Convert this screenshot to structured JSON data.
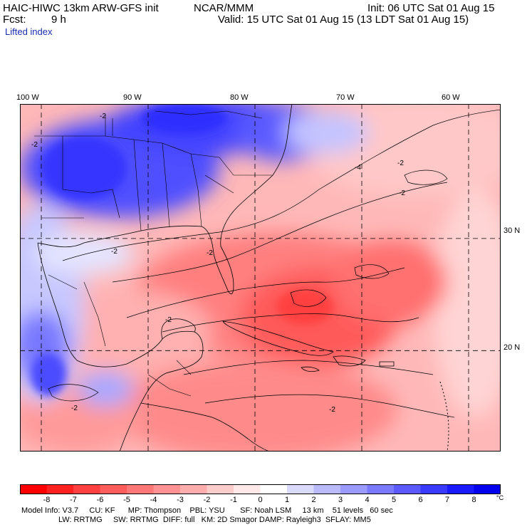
{
  "header": {
    "model": "HAIC-HIWC 13km ARW-GFS init",
    "org": "NCAR/MMM",
    "init": "Init: 06 UTC Sat 01 Aug 15",
    "fcst_label": "Fcst:",
    "fcst_value": "9 h",
    "valid": "Valid: 15 UTC Sat 01 Aug 15 (13 LDT Sat 01 Aug 15)",
    "field": "Lifted index"
  },
  "map": {
    "lon_labels": [
      "100 W",
      "90 W",
      "80 W",
      "70 W",
      "60 W"
    ],
    "lon_values": [
      -100,
      -90,
      -80,
      -70,
      -60
    ],
    "lat_labels": [
      "30 N",
      "20 N"
    ],
    "lat_values": [
      30,
      20
    ],
    "extent": {
      "west": -102,
      "east": -57,
      "south": 11,
      "north": 42
    },
    "contour_labels": [
      "-2",
      "-2",
      "-2",
      "-2",
      "-2",
      "-4",
      "-2",
      "-2",
      "-2",
      "-2"
    ]
  },
  "colorbar": {
    "ticks": [
      "-8",
      "-7",
      "-6",
      "-5",
      "-4",
      "-3",
      "-2",
      "-1",
      "0",
      "1",
      "2",
      "3",
      "4",
      "5",
      "6",
      "7",
      "8"
    ],
    "unit": "°C",
    "colors": [
      "#ff0000",
      "#ff2020",
      "#ff4040",
      "#ff5c5c",
      "#ff7777",
      "#ff9292",
      "#ffadad",
      "#ffcccc",
      "#ffe8e8",
      "#ffffff",
      "#dadaff",
      "#babaff",
      "#9a9aff",
      "#7a7aff",
      "#5a5aff",
      "#3a3aff",
      "#1a1aff",
      "#0000ee"
    ]
  },
  "info": {
    "line1": "Model Info: V3.7     CU: KF      MP: Thompson    PBL: YSU       SF: Noah LSM     13 km    51 levels   60 sec",
    "line2": "                 LW: RRTMG     SW: RRTMG  DIFF: full   KM: 2D Smagor DAMP: Rayleigh3  SFLAY: MM5"
  }
}
